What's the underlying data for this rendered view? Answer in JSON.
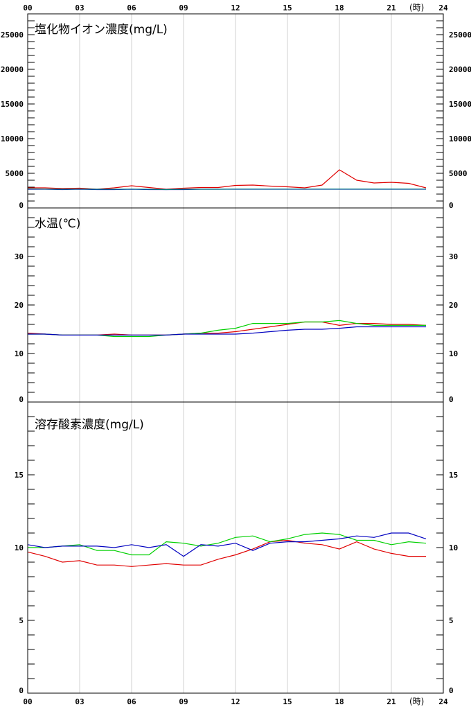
{
  "hour_unit": "(時)",
  "x_ticks": [
    "00",
    "03",
    "06",
    "09",
    "12",
    "15",
    "18",
    "21",
    "24"
  ],
  "series_colors": {
    "red": "#e00000",
    "green": "#00d000",
    "blue": "#0000c0",
    "teal": "#008080"
  },
  "chart_data": [
    {
      "type": "line",
      "title": "塩化物イオン濃度(mg/L)",
      "xlabel": "",
      "ylabel": "",
      "xlim": [
        0,
        24
      ],
      "ylim": [
        0,
        28000
      ],
      "y_ticks": [
        {
          "v": 0,
          "label": "0"
        },
        {
          "v": 5000,
          "label": "5000"
        },
        {
          "v": 10000,
          "label": "10000"
        },
        {
          "v": 15000,
          "label": "15000"
        },
        {
          "v": 20000,
          "label": "20000"
        },
        {
          "v": 25000,
          "label": "25000"
        }
      ],
      "minor_step": 1000,
      "grid": true,
      "series": [
        {
          "color": "#e00000",
          "x": [
            0,
            1,
            2,
            3,
            4,
            5,
            6,
            7,
            8,
            9,
            10,
            11,
            12,
            13,
            14,
            15,
            16,
            17,
            18,
            19,
            20,
            21,
            22,
            23
          ],
          "y": [
            2900,
            2900,
            2800,
            2850,
            2700,
            2900,
            3200,
            2950,
            2700,
            2850,
            2950,
            2950,
            3250,
            3300,
            3150,
            3050,
            2900,
            3300,
            5500,
            4000,
            3600,
            3700,
            3550,
            2900
          ]
        },
        {
          "color": "#0000c0",
          "x": [
            0,
            1,
            2,
            3,
            4,
            5,
            6,
            7,
            8,
            9,
            10,
            11,
            12,
            13,
            14,
            15,
            16,
            17,
            18,
            19,
            20,
            21,
            22,
            23
          ],
          "y": [
            2700,
            2700,
            2650,
            2700,
            2650,
            2650,
            2700,
            2650,
            2650,
            2650,
            2700,
            2700,
            2700,
            2700,
            2700,
            2700,
            2700,
            2700,
            2700,
            2700,
            2700,
            2700,
            2700,
            2700
          ]
        },
        {
          "color": "#008080",
          "x": [
            0,
            1,
            2,
            3,
            4,
            5,
            6,
            7,
            8,
            9,
            10,
            11,
            12,
            13,
            14,
            15,
            16,
            17,
            18,
            19,
            20,
            21,
            22,
            23
          ],
          "y": [
            2750,
            2720,
            2700,
            2720,
            2700,
            2700,
            2720,
            2700,
            2650,
            2700,
            2700,
            2700,
            2720,
            2720,
            2720,
            2720,
            2720,
            2720,
            2720,
            2720,
            2720,
            2720,
            2720,
            2720
          ]
        }
      ]
    },
    {
      "type": "line",
      "title": "水温(℃)",
      "xlabel": "",
      "ylabel": "",
      "xlim": [
        0,
        24
      ],
      "ylim": [
        0,
        40
      ],
      "y_ticks": [
        {
          "v": 0,
          "label": "0"
        },
        {
          "v": 10,
          "label": "10"
        },
        {
          "v": 20,
          "label": "20"
        },
        {
          "v": 30,
          "label": "30"
        }
      ],
      "minor_step": 2,
      "minor_max": 38,
      "grid": true,
      "series": [
        {
          "color": "#e00000",
          "x": [
            0,
            1,
            2,
            3,
            4,
            5,
            6,
            7,
            8,
            9,
            10,
            11,
            12,
            13,
            14,
            15,
            16,
            17,
            18,
            19,
            20,
            21,
            22,
            23
          ],
          "y": [
            14.2,
            14.0,
            13.8,
            13.8,
            13.8,
            14.0,
            13.8,
            13.8,
            13.8,
            14.0,
            14.2,
            14.2,
            14.5,
            15.0,
            15.5,
            16.0,
            16.5,
            16.5,
            15.8,
            16.2,
            16.2,
            16.0,
            16.0,
            15.8
          ]
        },
        {
          "color": "#00d000",
          "x": [
            0,
            1,
            2,
            3,
            4,
            5,
            6,
            7,
            8,
            9,
            10,
            11,
            12,
            13,
            14,
            15,
            16,
            17,
            18,
            19,
            20,
            21,
            22,
            23
          ],
          "y": [
            14.0,
            14.0,
            13.8,
            13.8,
            13.8,
            13.5,
            13.5,
            13.5,
            13.8,
            14.0,
            14.2,
            14.8,
            15.2,
            16.2,
            16.2,
            16.2,
            16.5,
            16.5,
            16.8,
            16.2,
            15.8,
            15.8,
            15.8,
            15.8
          ]
        },
        {
          "color": "#0000c0",
          "x": [
            0,
            1,
            2,
            3,
            4,
            5,
            6,
            7,
            8,
            9,
            10,
            11,
            12,
            13,
            14,
            15,
            16,
            17,
            18,
            19,
            20,
            21,
            22,
            23
          ],
          "y": [
            14.0,
            14.0,
            13.8,
            13.8,
            13.8,
            13.8,
            13.8,
            13.8,
            13.8,
            14.0,
            14.0,
            14.0,
            14.0,
            14.2,
            14.5,
            14.8,
            15.0,
            15.0,
            15.2,
            15.5,
            15.5,
            15.5,
            15.5,
            15.5
          ]
        }
      ]
    },
    {
      "type": "line",
      "title": "溶存酸素濃度(mg/L)",
      "xlabel": "",
      "ylabel": "",
      "xlim": [
        0,
        24
      ],
      "ylim": [
        0,
        20
      ],
      "y_ticks": [
        {
          "v": 0,
          "label": "0"
        },
        {
          "v": 5,
          "label": "5"
        },
        {
          "v": 10,
          "label": "10"
        },
        {
          "v": 15,
          "label": "15"
        }
      ],
      "minor_step": 1,
      "minor_max": 19,
      "grid": true,
      "series": [
        {
          "color": "#e00000",
          "x": [
            0,
            1,
            2,
            3,
            4,
            5,
            6,
            7,
            8,
            9,
            10,
            11,
            12,
            13,
            14,
            15,
            16,
            17,
            18,
            19,
            20,
            21,
            22,
            23
          ],
          "y": [
            9.7,
            9.4,
            9.0,
            9.1,
            8.8,
            8.8,
            8.7,
            8.8,
            8.9,
            8.8,
            8.8,
            9.2,
            9.5,
            9.9,
            10.4,
            10.5,
            10.3,
            10.2,
            9.9,
            10.4,
            9.9,
            9.6,
            9.4,
            9.4
          ]
        },
        {
          "color": "#00d000",
          "x": [
            0,
            1,
            2,
            3,
            4,
            5,
            6,
            7,
            8,
            9,
            10,
            11,
            12,
            13,
            14,
            15,
            16,
            17,
            18,
            19,
            20,
            21,
            22,
            23
          ],
          "y": [
            10.0,
            10.0,
            10.1,
            10.2,
            9.8,
            9.8,
            9.5,
            9.5,
            10.4,
            10.3,
            10.1,
            10.3,
            10.7,
            10.8,
            10.4,
            10.6,
            10.9,
            11.0,
            10.9,
            10.5,
            10.5,
            10.2,
            10.4,
            10.3
          ]
        },
        {
          "color": "#0000c0",
          "x": [
            0,
            1,
            2,
            3,
            4,
            5,
            6,
            7,
            8,
            9,
            10,
            11,
            12,
            13,
            14,
            15,
            16,
            17,
            18,
            19,
            20,
            21,
            22,
            23
          ],
          "y": [
            10.2,
            10.0,
            10.1,
            10.1,
            10.1,
            10.0,
            10.2,
            10.0,
            10.2,
            9.4,
            10.2,
            10.1,
            10.3,
            9.8,
            10.3,
            10.4,
            10.4,
            10.5,
            10.6,
            10.8,
            10.7,
            11.0,
            11.0,
            10.6
          ]
        }
      ]
    }
  ]
}
